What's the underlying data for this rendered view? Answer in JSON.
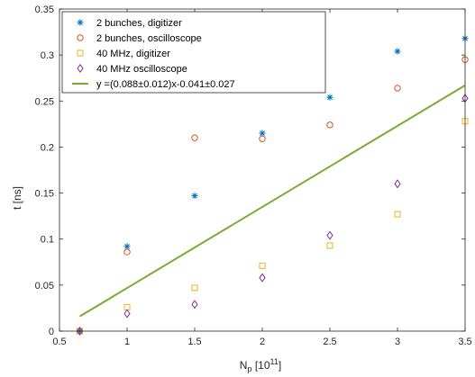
{
  "chart_data": {
    "type": "scatter",
    "xlabel": "N",
    "xlabel_sub": "p",
    "xlabel_unit": " [10",
    "xlabel_exp": "11",
    "xlabel_close": "]",
    "ylabel": "t [ns]",
    "xlim": [
      0.5,
      3.5
    ],
    "ylim": [
      0,
      0.35
    ],
    "xticks": [
      0.5,
      1,
      1.5,
      2,
      2.5,
      3,
      3.5
    ],
    "xtick_labels": [
      "0.5",
      "1",
      "1.5",
      "2",
      "2.5",
      "3",
      "3.5"
    ],
    "yticks": [
      0,
      0.05,
      0.1,
      0.15,
      0.2,
      0.25,
      0.3,
      0.35
    ],
    "ytick_labels": [
      "0",
      "0.05",
      "0.1",
      "0.15",
      "0.2",
      "0.25",
      "0.3",
      "0.35"
    ],
    "grid": false,
    "legend_position": "top-left",
    "series": [
      {
        "name": "2 bunches, digitizer",
        "marker": "asterisk",
        "color": "#0072BD",
        "x": [
          0.65,
          1,
          1.5,
          2,
          2.5,
          3,
          3.5
        ],
        "y": [
          0.0,
          0.092,
          0.147,
          0.215,
          0.254,
          0.304,
          0.318
        ]
      },
      {
        "name": "2 bunches, oscilloscope",
        "marker": "circle",
        "color": "#D95319",
        "x": [
          0.65,
          1,
          1.5,
          2,
          2.5,
          3,
          3.5
        ],
        "y": [
          0.0,
          0.086,
          0.21,
          0.209,
          0.224,
          0.264,
          0.295
        ]
      },
      {
        "name": "40 MHz, digitizer",
        "marker": "square",
        "color": "#EDB120",
        "x": [
          0.65,
          1,
          1.5,
          2,
          2.5,
          3,
          3.5
        ],
        "y": [
          0.0,
          0.026,
          0.047,
          0.071,
          0.093,
          0.127,
          0.228
        ]
      },
      {
        "name": "40 MHz oscilloscope",
        "marker": "diamond",
        "color": "#7E2F8E",
        "x": [
          0.65,
          1,
          1.5,
          2,
          2.5,
          3,
          3.5
        ],
        "y": [
          0.0,
          0.019,
          0.029,
          0.058,
          0.104,
          0.16,
          0.253
        ]
      },
      {
        "name": "y =(0.088±0.012)x-0.041±0.027",
        "marker": "line",
        "color": "#77AC30",
        "x": [
          0.65,
          3.5
        ],
        "y": [
          0.016,
          0.267
        ]
      }
    ]
  }
}
